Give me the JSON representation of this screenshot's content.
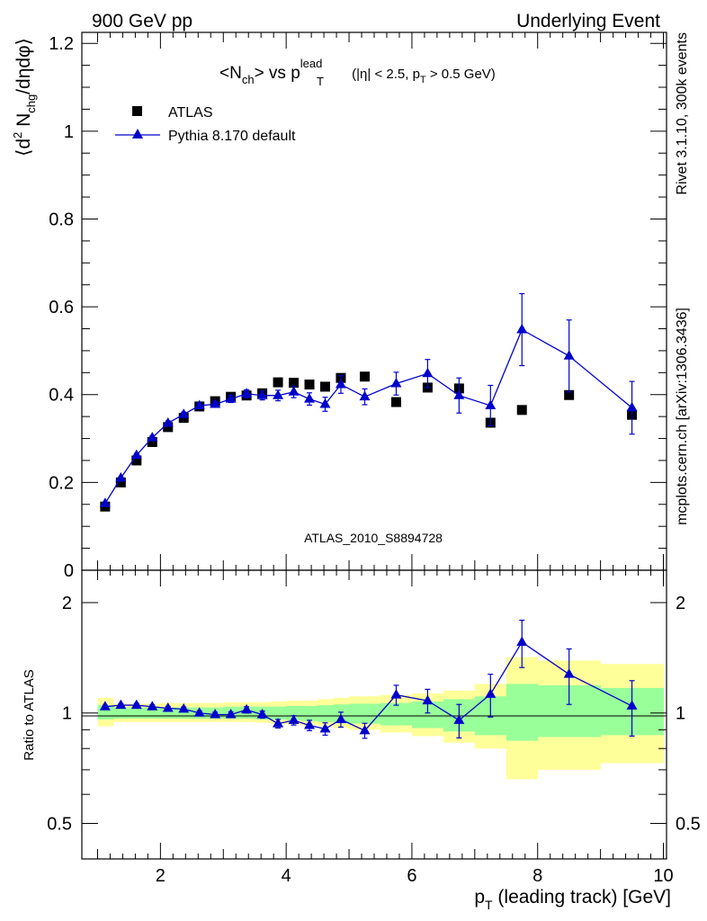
{
  "chart_data": [
    {
      "type": "scatter",
      "panel": "main",
      "header_left": "900 GeV pp",
      "header_right": "Underlying Event",
      "title": {
        "a": "<N",
        "a_sub": "ch",
        "b": "> vs p",
        "b_sup": "lead",
        "b_sub": "T",
        "c": " (|η| < 2.5, p",
        "c_sub": "T",
        "d": " > 0.5 GeV)"
      },
      "ylabel": {
        "a": "⟨d",
        "a_sup": "2",
        "b": " N",
        "b_sub": "chg",
        "c": "/dηdφ⟩"
      },
      "analysis_label": "ATLAS_2010_S8894728",
      "side_label_top": "Rivet 3.1.10,  300k events",
      "side_label_bottom": "mcplots.cern.ch [arXiv:1306.3436]",
      "xlim": [
        0.75,
        10.05
      ],
      "ylim": [
        0,
        1.225
      ],
      "y_ticks": [
        0,
        0.2,
        0.4,
        0.6,
        0.8,
        1,
        1.2
      ],
      "y_tick_labels": [
        "0",
        "0.2",
        "0.4",
        "0.6",
        "0.8",
        "1",
        "1.2"
      ],
      "legend": [
        {
          "label": "ATLAS",
          "marker": "square",
          "color": "#000000"
        },
        {
          "label": "Pythia 8.170 default",
          "marker": "triangle",
          "color": "#0000cc"
        }
      ],
      "series": [
        {
          "name": "ATLAS",
          "x": [
            1.12,
            1.37,
            1.62,
            1.87,
            2.12,
            2.37,
            2.62,
            2.87,
            3.12,
            3.37,
            3.62,
            3.87,
            4.12,
            4.37,
            4.62,
            4.87,
            5.25,
            5.75,
            6.25,
            6.75,
            7.25,
            7.75,
            8.5,
            9.5
          ],
          "y": [
            0.145,
            0.2,
            0.25,
            0.292,
            0.326,
            0.347,
            0.373,
            0.385,
            0.395,
            0.398,
            0.403,
            0.428,
            0.427,
            0.423,
            0.418,
            0.438,
            0.441,
            0.383,
            0.416,
            0.414,
            0.336,
            0.365,
            0.399,
            0.354
          ]
        },
        {
          "name": "Pythia 8.170 default",
          "x": [
            1.12,
            1.37,
            1.62,
            1.87,
            2.12,
            2.37,
            2.62,
            2.87,
            3.12,
            3.37,
            3.62,
            3.87,
            4.12,
            4.37,
            4.62,
            4.87,
            5.25,
            5.75,
            6.25,
            6.75,
            7.25,
            7.75,
            8.5,
            9.5
          ],
          "y": [
            0.152,
            0.21,
            0.262,
            0.302,
            0.335,
            0.355,
            0.375,
            0.378,
            0.39,
            0.402,
            0.398,
            0.398,
            0.406,
            0.39,
            0.378,
            0.423,
            0.395,
            0.425,
            0.448,
            0.398,
            0.375,
            0.548,
            0.488,
            0.37
          ],
          "yerr": [
            0.003,
            0.003,
            0.004,
            0.004,
            0.005,
            0.005,
            0.006,
            0.007,
            0.008,
            0.009,
            0.01,
            0.012,
            0.013,
            0.014,
            0.016,
            0.02,
            0.018,
            0.026,
            0.032,
            0.04,
            0.046,
            0.082,
            0.082,
            0.06
          ]
        }
      ]
    },
    {
      "type": "line",
      "panel": "ratio",
      "ylabel": "Ratio to ATLAS",
      "xlabel": {
        "a": "p",
        "a_sub": "T",
        "b": " (leading track) [GeV]"
      },
      "xlim": [
        0.75,
        10.05
      ],
      "ylim_log": [
        0.4,
        2.45
      ],
      "reference_line": 1,
      "y_ticks": [
        0.5,
        1,
        2
      ],
      "y_tick_labels": [
        "0.5",
        "1",
        "2"
      ],
      "x_ticks": [
        2,
        4,
        6,
        8,
        10
      ],
      "x_tick_labels": [
        "2",
        "4",
        "6",
        "8",
        "10"
      ],
      "band_edges": [
        1.0,
        1.25,
        1.5,
        1.75,
        2.0,
        2.25,
        2.5,
        2.75,
        3.0,
        3.25,
        3.5,
        3.75,
        4.0,
        4.25,
        4.5,
        4.75,
        5.0,
        5.5,
        6.0,
        6.5,
        7.0,
        7.5,
        8.0,
        9.0,
        10.0
      ],
      "band_yellow_lo": [
        0.92,
        0.945,
        0.945,
        0.945,
        0.945,
        0.945,
        0.945,
        0.945,
        0.945,
        0.945,
        0.94,
        0.935,
        0.93,
        0.925,
        0.92,
        0.91,
        0.9,
        0.885,
        0.865,
        0.83,
        0.8,
        0.66,
        0.7,
        0.73
      ],
      "band_yellow_hi": [
        1.1,
        1.06,
        1.06,
        1.06,
        1.065,
        1.065,
        1.065,
        1.065,
        1.07,
        1.07,
        1.07,
        1.075,
        1.08,
        1.08,
        1.09,
        1.1,
        1.11,
        1.12,
        1.13,
        1.15,
        1.2,
        1.42,
        1.39,
        1.36
      ],
      "band_green_lo": [
        0.96,
        0.965,
        0.965,
        0.965,
        0.965,
        0.965,
        0.965,
        0.965,
        0.965,
        0.965,
        0.96,
        0.96,
        0.955,
        0.95,
        0.945,
        0.94,
        0.935,
        0.925,
        0.91,
        0.89,
        0.87,
        0.84,
        0.86,
        0.87
      ],
      "band_green_hi": [
        1.05,
        1.035,
        1.035,
        1.035,
        1.035,
        1.035,
        1.035,
        1.035,
        1.04,
        1.04,
        1.04,
        1.04,
        1.045,
        1.045,
        1.05,
        1.055,
        1.06,
        1.065,
        1.075,
        1.09,
        1.11,
        1.2,
        1.19,
        1.17
      ],
      "series": [
        {
          "name": "Pythia 8.170 default / ATLAS",
          "x": [
            1.12,
            1.37,
            1.62,
            1.87,
            2.12,
            2.37,
            2.62,
            2.87,
            3.12,
            3.37,
            3.62,
            3.87,
            4.12,
            4.37,
            4.62,
            4.87,
            5.25,
            5.75,
            6.25,
            6.75,
            7.25,
            7.75,
            8.5,
            9.5
          ],
          "y": [
            1.04,
            1.05,
            1.05,
            1.04,
            1.03,
            1.025,
            1.0,
            0.99,
            0.99,
            1.02,
            0.99,
            0.935,
            0.955,
            0.925,
            0.905,
            0.96,
            0.895,
            1.12,
            1.08,
            0.955,
            1.125,
            1.56,
            1.275,
            1.045
          ],
          "yerr": [
            0.01,
            0.01,
            0.012,
            0.012,
            0.012,
            0.013,
            0.014,
            0.015,
            0.017,
            0.02,
            0.022,
            0.025,
            0.028,
            0.03,
            0.035,
            0.045,
            0.042,
            0.07,
            0.08,
            0.1,
            0.15,
            0.23,
            0.22,
            0.18
          ]
        }
      ]
    }
  ]
}
